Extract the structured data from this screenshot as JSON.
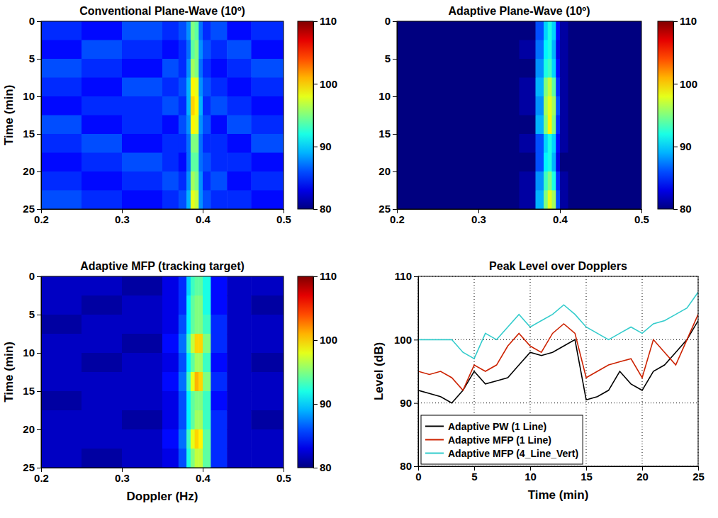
{
  "chart_data": [
    {
      "type": "heatmap",
      "title": "Conventional Plane-Wave (10º)",
      "ylabel": "Time (min)",
      "x_edges": [
        0.2,
        0.25,
        0.3,
        0.35,
        0.37,
        0.38,
        0.385,
        0.39,
        0.395,
        0.4,
        0.41,
        0.43,
        0.46,
        0.5
      ],
      "y_edges": [
        0,
        2.5,
        5,
        7.5,
        10,
        12.5,
        15,
        17.5,
        20,
        22.5,
        25
      ],
      "cells": [
        [
          85,
          84,
          86,
          85,
          86,
          88,
          95,
          94,
          87,
          85,
          86,
          84,
          85
        ],
        [
          84,
          86,
          85,
          84,
          85,
          87,
          94,
          95,
          88,
          86,
          85,
          86,
          84
        ],
        [
          86,
          85,
          84,
          86,
          85,
          88,
          96,
          95,
          87,
          85,
          84,
          85,
          86
        ],
        [
          85,
          84,
          86,
          85,
          86,
          89,
          99,
          98,
          88,
          86,
          85,
          84,
          85
        ],
        [
          84,
          85,
          85,
          86,
          85,
          89,
          100,
          99,
          89,
          85,
          86,
          85,
          84
        ],
        [
          86,
          84,
          85,
          84,
          86,
          88,
          99,
          98,
          88,
          86,
          84,
          86,
          85
        ],
        [
          85,
          86,
          84,
          85,
          85,
          87,
          95,
          95,
          87,
          85,
          85,
          84,
          86
        ],
        [
          84,
          85,
          86,
          85,
          84,
          87,
          94,
          94,
          87,
          86,
          85,
          85,
          84
        ],
        [
          85,
          84,
          85,
          86,
          85,
          88,
          96,
          95,
          88,
          85,
          86,
          84,
          85
        ],
        [
          86,
          85,
          84,
          85,
          86,
          89,
          98,
          97,
          88,
          86,
          85,
          85,
          84
        ]
      ],
      "xlim": [
        0.2,
        0.5
      ],
      "ylim": [
        0,
        25
      ],
      "xticks": [
        0.2,
        0.3,
        0.4,
        0.5
      ],
      "yticks": [
        0,
        5,
        10,
        15,
        20,
        25
      ],
      "colorbar_lim": [
        80,
        110
      ],
      "colorbar_ticks": [
        80,
        90,
        100,
        110
      ]
    },
    {
      "type": "heatmap",
      "title": "Adaptive Plane-Wave (10º)",
      "x_edges": [
        0.2,
        0.25,
        0.3,
        0.35,
        0.37,
        0.38,
        0.385,
        0.39,
        0.395,
        0.4,
        0.41,
        0.43,
        0.46,
        0.5
      ],
      "y_edges": [
        0,
        2.5,
        5,
        7.5,
        10,
        12.5,
        15,
        17.5,
        20,
        22.5,
        25
      ],
      "cells": [
        [
          80,
          80,
          80,
          80,
          86,
          90,
          92,
          90,
          84,
          81,
          80,
          80,
          80
        ],
        [
          80,
          80,
          80,
          81,
          87,
          91,
          92,
          89,
          83,
          81,
          80,
          80,
          80
        ],
        [
          80,
          80,
          80,
          80,
          88,
          92,
          93,
          90,
          84,
          81,
          80,
          80,
          80
        ],
        [
          80,
          80,
          80,
          81,
          89,
          95,
          97,
          94,
          85,
          81,
          80,
          80,
          80
        ],
        [
          80,
          80,
          80,
          81,
          88,
          96,
          98,
          96,
          86,
          81,
          80,
          80,
          80
        ],
        [
          80,
          80,
          80,
          80,
          89,
          95,
          99,
          95,
          85,
          81,
          80,
          80,
          80
        ],
        [
          80,
          80,
          80,
          81,
          86,
          90,
          92,
          90,
          84,
          81,
          80,
          80,
          80
        ],
        [
          80,
          80,
          80,
          80,
          86,
          91,
          92,
          89,
          83,
          80,
          80,
          80,
          80
        ],
        [
          80,
          80,
          80,
          81,
          88,
          93,
          95,
          92,
          85,
          81,
          80,
          80,
          80
        ],
        [
          80,
          80,
          80,
          81,
          89,
          95,
          98,
          96,
          86,
          81,
          80,
          80,
          80
        ]
      ],
      "xlim": [
        0.2,
        0.5
      ],
      "ylim": [
        0,
        25
      ],
      "xticks": [
        0.2,
        0.3,
        0.4,
        0.5
      ],
      "yticks": [
        0,
        5,
        10,
        15,
        20,
        25
      ],
      "colorbar_lim": [
        80,
        110
      ],
      "colorbar_ticks": [
        80,
        90,
        100,
        110
      ]
    },
    {
      "type": "heatmap",
      "title": "Adaptive MFP (tracking target)",
      "xlabel": "Doppler (Hz)",
      "ylabel": "Time (min)",
      "x_edges": [
        0.2,
        0.25,
        0.3,
        0.35,
        0.37,
        0.38,
        0.385,
        0.39,
        0.395,
        0.4,
        0.41,
        0.43,
        0.46,
        0.5
      ],
      "y_edges": [
        0,
        2.5,
        5,
        7.5,
        10,
        12.5,
        15,
        17.5,
        20,
        22.5,
        25
      ],
      "cells": [
        [
          82,
          82,
          81,
          83,
          85,
          90,
          93,
          94,
          94,
          92,
          84,
          82,
          82
        ],
        [
          82,
          81,
          82,
          83,
          85,
          91,
          94,
          95,
          95,
          92,
          84,
          82,
          81
        ],
        [
          81,
          82,
          82,
          83,
          86,
          91,
          94,
          95,
          95,
          93,
          85,
          82,
          82
        ],
        [
          82,
          82,
          81,
          84,
          87,
          93,
          97,
          100,
          100,
          95,
          85,
          82,
          82
        ],
        [
          82,
          81,
          82,
          83,
          86,
          91,
          94,
          96,
          96,
          93,
          84,
          82,
          81
        ],
        [
          82,
          82,
          82,
          84,
          87,
          93,
          98,
          101,
          100,
          95,
          85,
          82,
          82
        ],
        [
          81,
          82,
          82,
          83,
          86,
          91,
          94,
          95,
          95,
          93,
          84,
          82,
          82
        ],
        [
          82,
          82,
          81,
          83,
          86,
          91,
          94,
          96,
          96,
          93,
          85,
          82,
          81
        ],
        [
          82,
          82,
          82,
          84,
          87,
          93,
          98,
          100,
          99,
          94,
          85,
          82,
          82
        ],
        [
          82,
          81,
          82,
          83,
          86,
          92,
          95,
          97,
          97,
          94,
          85,
          82,
          82
        ]
      ],
      "xlim": [
        0.2,
        0.5
      ],
      "ylim": [
        0,
        25
      ],
      "xticks": [
        0.2,
        0.3,
        0.4,
        0.5
      ],
      "yticks": [
        0,
        5,
        10,
        15,
        20,
        25
      ],
      "colorbar_lim": [
        80,
        110
      ],
      "colorbar_ticks": [
        80,
        90,
        100,
        110
      ]
    },
    {
      "type": "line",
      "title": "Peak Level over Dopplers",
      "xlabel": "Time (min)",
      "ylabel": "Level (dB)",
      "x": [
        0,
        1,
        2,
        3,
        4,
        5,
        6,
        7,
        8,
        9,
        10,
        11,
        12,
        13,
        14,
        15,
        16,
        17,
        18,
        19,
        20,
        21,
        22,
        23,
        24,
        25
      ],
      "series": [
        {
          "name": "Adaptive PW (1 Line)",
          "color": "#000000",
          "values": [
            92,
            91.5,
            91,
            90,
            92,
            95,
            93,
            93.5,
            94,
            96,
            98,
            97.5,
            98,
            99,
            100,
            90.5,
            91,
            92,
            95,
            93,
            92,
            95,
            96,
            98,
            100,
            103
          ]
        },
        {
          "name": "Adaptive MFP (1 Line)",
          "color": "#cc2200",
          "values": [
            95,
            94.5,
            95,
            94,
            92,
            96,
            95,
            96,
            99,
            101,
            99,
            98,
            101,
            102.5,
            101,
            94,
            95,
            96,
            96.5,
            97,
            94,
            100,
            98,
            96,
            100,
            104
          ]
        },
        {
          "name": "Adaptive MFP (4_Line_Vert)",
          "color": "#33cccc",
          "values": [
            100,
            100,
            100,
            100,
            98,
            97,
            101,
            100,
            102,
            104,
            102,
            103,
            104,
            105.5,
            104,
            102,
            101,
            100,
            101,
            102,
            101,
            102.5,
            103,
            104,
            105,
            107.5
          ]
        }
      ],
      "xlim": [
        0,
        25
      ],
      "ylim": [
        80,
        110
      ],
      "xticks": [
        0,
        5,
        10,
        15,
        20,
        25
      ],
      "yticks": [
        80,
        90,
        100,
        110
      ],
      "grid": true,
      "legend": "lower left"
    }
  ]
}
